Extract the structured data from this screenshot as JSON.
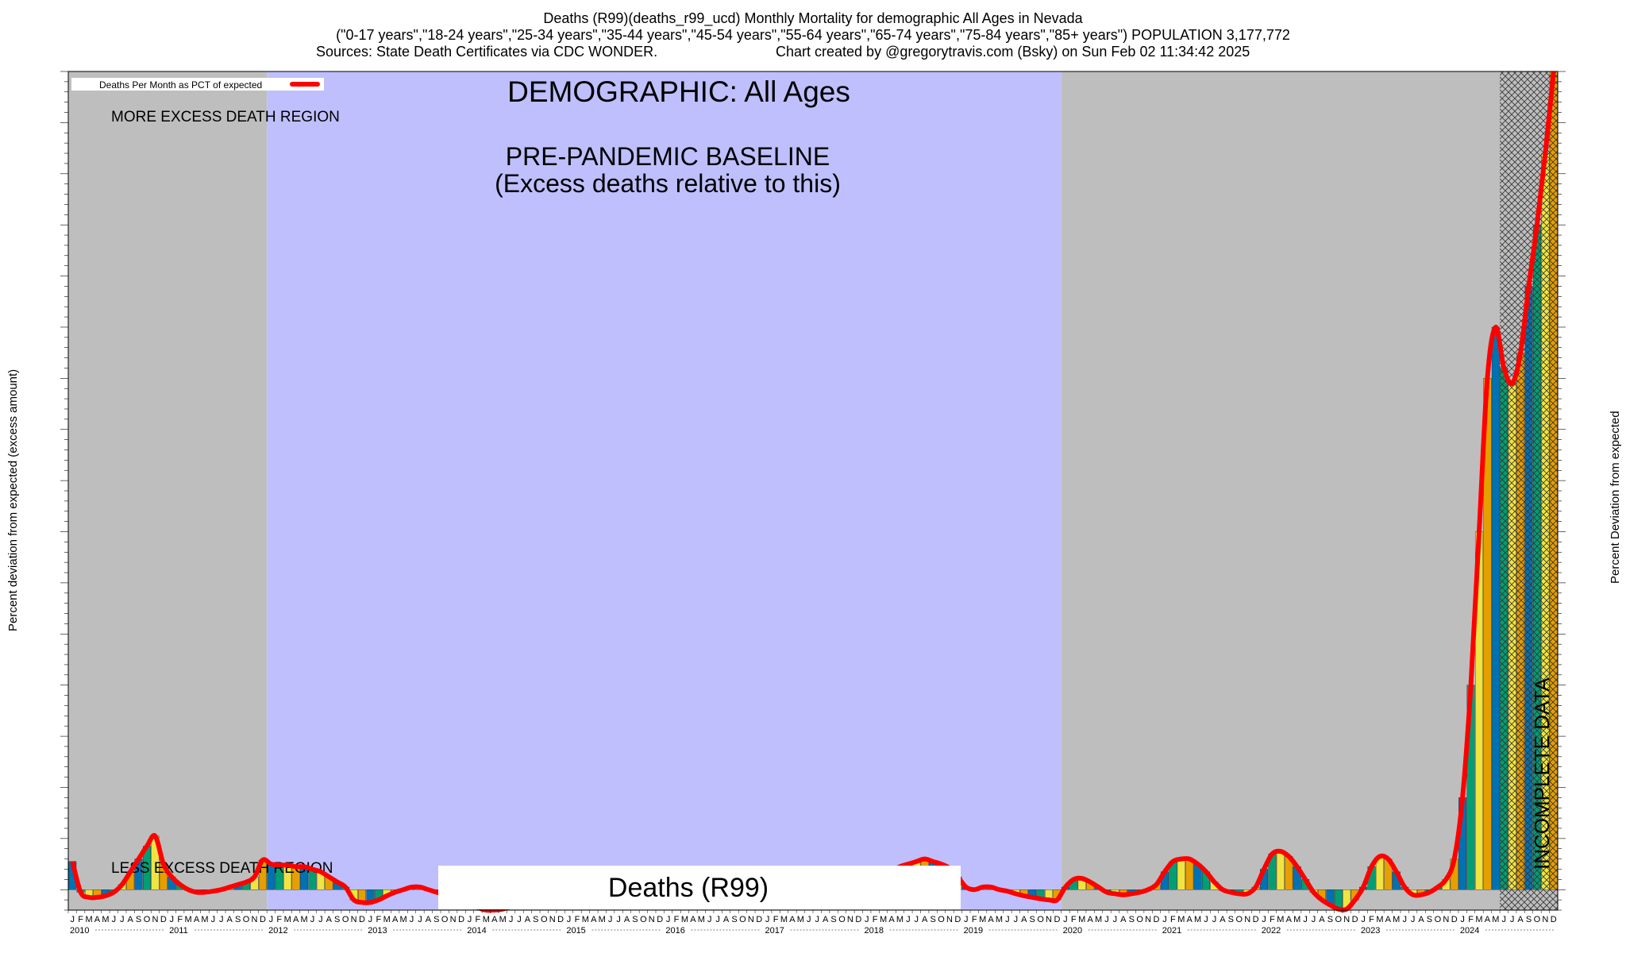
{
  "header": {
    "line1": "Deaths (R99)(deaths_r99_ucd) Monthly Mortality for demographic All Ages in Nevada",
    "line2": "(\"0-17 years\",\"18-24 years\",\"25-34 years\",\"35-44 years\",\"45-54 years\",\"55-64 years\",\"65-74 years\",\"75-84 years\",\"85+ years\") POPULATION 3,177,772",
    "line3_left": "Sources: State Death Certificates via CDC WONDER.",
    "line3_right": "Chart created by @gregorytravis.com (Bsky) on Sun Feb 02 11:34:42 2025"
  },
  "annotations": {
    "demographic": "DEMOGRAPHIC: All Ages",
    "baseline_line1": "PRE-PANDEMIC BASELINE",
    "baseline_line2": "(Excess deaths relative to this)",
    "more_excess": "MORE EXCESS DEATH REGION",
    "less_excess": "LESS EXCESS DEATH REGION",
    "incomplete": "INCOMPLETE DATA",
    "cause_box": "Deaths (R99)"
  },
  "legend": {
    "label": "Deaths Per Month as PCT of expected",
    "color": "#ff0000"
  },
  "axes": {
    "ylabel_left": "Percent deviation from expected (excess amount)",
    "ylabel_right": "Percent Deviation from expected"
  },
  "colors": {
    "grey_region": "#bebebe",
    "baseline_region": "#bfbffe",
    "curve": "#ff0000",
    "bar_palette": [
      "#0072b2",
      "#009e73",
      "#f0e442",
      "#e69f00"
    ]
  },
  "chart_data": {
    "type": "bar",
    "title": "Deaths (R99)(deaths_r99_ucd) Monthly Mortality for demographic All Ages in Nevada",
    "ylabel": "Percent deviation from expected (excess amount)",
    "ylim": [
      -40,
      1600
    ],
    "start": "2010-01",
    "month_letters": [
      "J",
      "F",
      "M",
      "A",
      "M",
      "J",
      "J",
      "A",
      "S",
      "O",
      "N",
      "D"
    ],
    "years": [
      "2010",
      "2011",
      "2012",
      "2013",
      "2014",
      "2015",
      "2016",
      "2017",
      "2018",
      "2019",
      "2020",
      "2021",
      "2022",
      "2023",
      "2024"
    ],
    "regions": [
      {
        "name": "more/less excess death region",
        "from": "2010-01",
        "to": "2011-12"
      },
      {
        "name": "pre-pandemic baseline",
        "from": "2012-01",
        "to": "2019-12"
      },
      {
        "name": "more/less excess death region",
        "from": "2020-01",
        "to": "2024-12"
      },
      {
        "name": "incomplete data",
        "from": "2024-06",
        "to": "2024-12"
      }
    ],
    "series": [
      {
        "name": "Deaths Per Month as PCT of expected",
        "values": [
          55,
          -5,
          -15,
          -15,
          -12,
          -5,
          10,
          35,
          60,
          85,
          105,
          50,
          25,
          10,
          0,
          -5,
          -5,
          -3,
          0,
          5,
          10,
          15,
          25,
          58,
          50,
          48,
          48,
          45,
          45,
          40,
          35,
          25,
          15,
          5,
          -20,
          -25,
          -25,
          -20,
          -12,
          -5,
          0,
          5,
          5,
          0,
          -5,
          -10,
          -15,
          -20,
          -25,
          -35,
          -40,
          -40,
          -38,
          -33,
          -28,
          -20,
          -12,
          -8,
          -5,
          -5,
          -8,
          -15,
          -20,
          -22,
          -22,
          -20,
          -15,
          -12,
          -10,
          -8,
          -5,
          -5,
          -5,
          -8,
          -12,
          -15,
          -15,
          -12,
          -8,
          -5,
          -3,
          -2,
          0,
          0,
          5,
          10,
          8,
          5,
          8,
          12,
          15,
          18,
          20,
          22,
          20,
          25,
          30,
          28,
          30,
          35,
          45,
          50,
          55,
          60,
          55,
          50,
          42,
          25,
          5,
          0,
          5,
          5,
          0,
          -3,
          -8,
          -12,
          -15,
          -18,
          -20,
          -20,
          5,
          20,
          22,
          15,
          5,
          -5,
          -8,
          -10,
          -8,
          -5,
          0,
          10,
          35,
          55,
          60,
          60,
          50,
          35,
          15,
          0,
          -5,
          -8,
          -8,
          5,
          40,
          70,
          75,
          65,
          45,
          20,
          -5,
          -20,
          -30,
          -38,
          -38,
          -20,
          5,
          45,
          65,
          60,
          35,
          5,
          -10,
          -10,
          -5,
          5,
          20,
          60,
          180,
          400,
          700,
          1000,
          1100,
          1020,
          990,
          1050,
          1180,
          1300,
          1440,
          1600
        ]
      }
    ]
  }
}
